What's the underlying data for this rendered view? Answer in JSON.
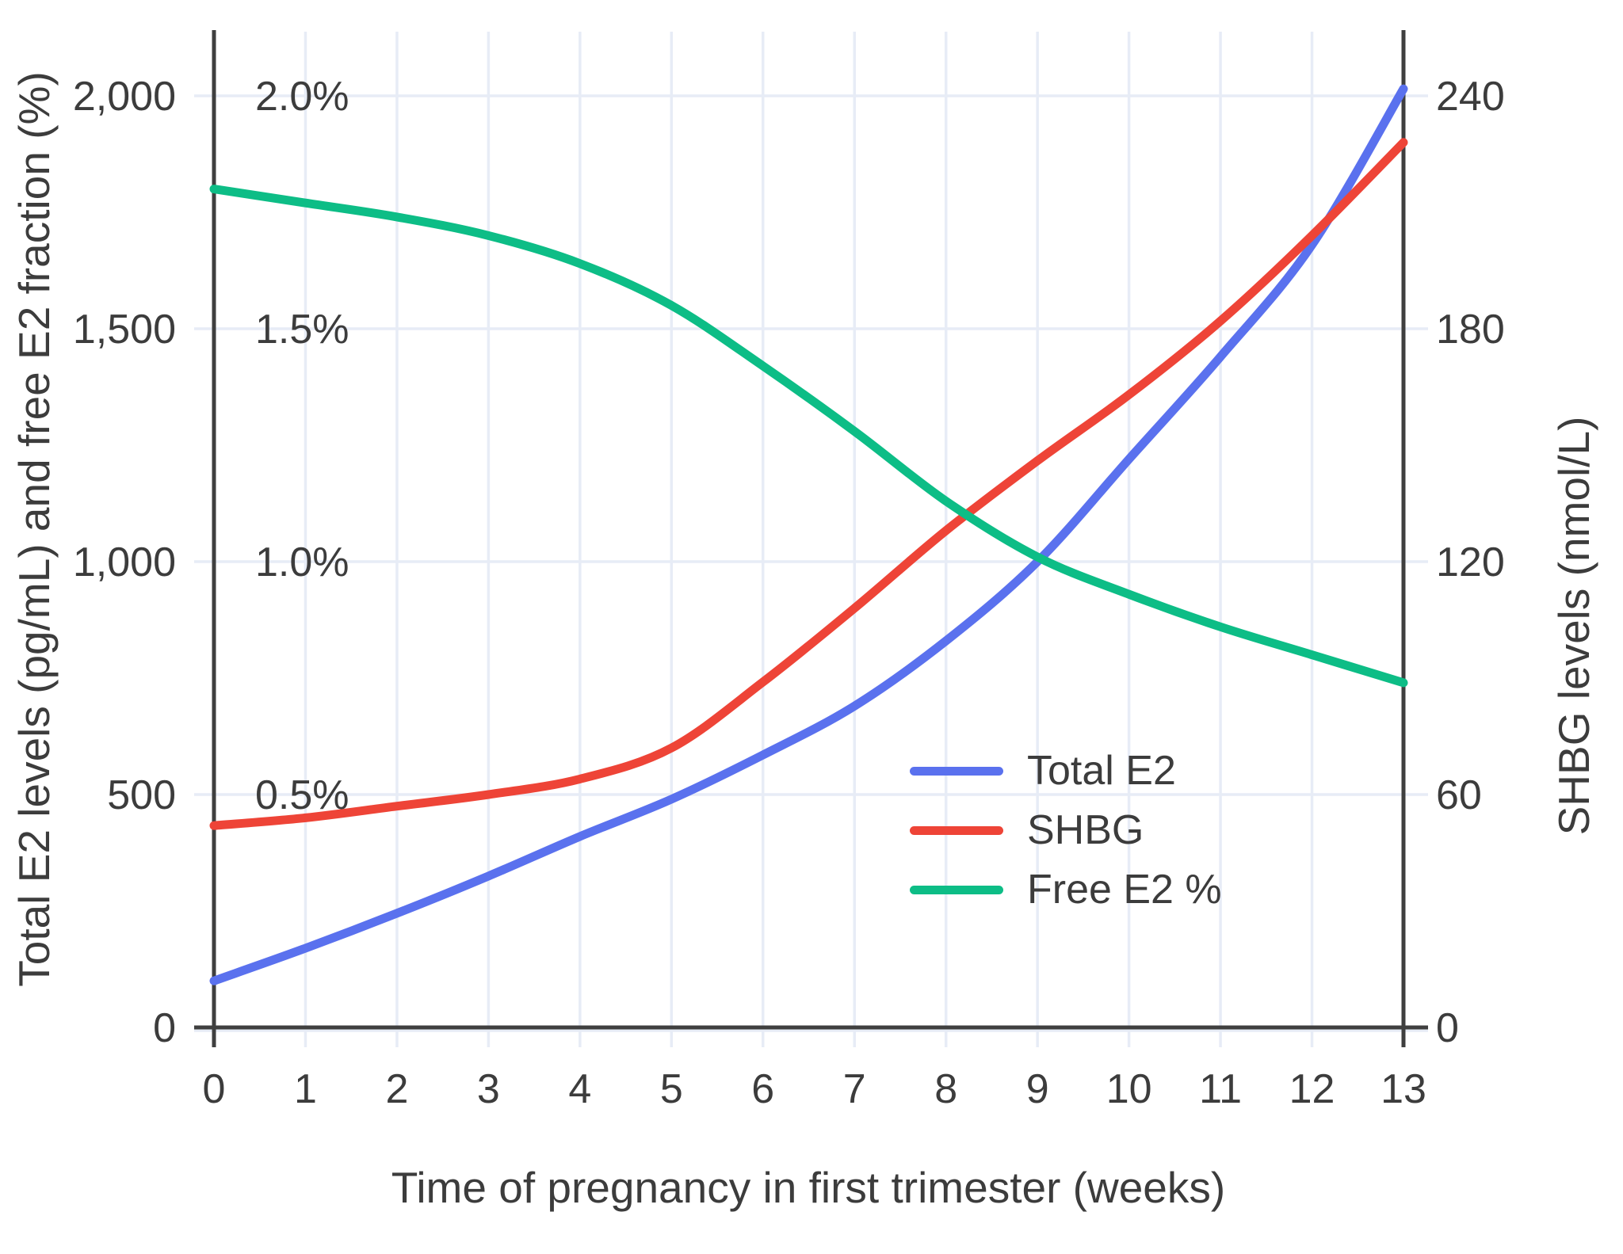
{
  "chart_data": {
    "type": "line",
    "title": "",
    "xlabel": "Time of pregnancy in first trimester (weeks)",
    "ylabel_left": "Total E2 levels (pg/mL) and free E2 fraction (%)",
    "ylabel_right": "SHBG levels (nmol/L)",
    "x": [
      0,
      1,
      2,
      3,
      4,
      5,
      6,
      7,
      8,
      9,
      10,
      11,
      12,
      13
    ],
    "x_tick_labels": [
      "0",
      "1",
      "2",
      "3",
      "4",
      "5",
      "6",
      "7",
      "8",
      "9",
      "10",
      "11",
      "12",
      "13"
    ],
    "x_range": [
      0,
      13
    ],
    "left_axis": {
      "range": [
        0,
        2000
      ],
      "unit": "pg/mL",
      "ticks": [
        {
          "label": "0",
          "value": 0
        },
        {
          "label": "500",
          "value": 500
        },
        {
          "label": "1,000",
          "value": 1000
        },
        {
          "label": "1,500",
          "value": 1500
        },
        {
          "label": "2,000",
          "value": 2000
        }
      ]
    },
    "percent_axis": {
      "range": [
        0,
        2
      ],
      "unit": "%",
      "ticks": [
        {
          "label": "0.5%",
          "value": 0.5
        },
        {
          "label": "1.0%",
          "value": 1.0
        },
        {
          "label": "1.5%",
          "value": 1.5
        },
        {
          "label": "2.0%",
          "value": 2.0
        }
      ]
    },
    "right_axis": {
      "range": [
        0,
        240
      ],
      "unit": "nmol/L",
      "ticks": [
        {
          "label": "0",
          "value": 0
        },
        {
          "label": "60",
          "value": 60
        },
        {
          "label": "120",
          "value": 120
        },
        {
          "label": "180",
          "value": 180
        },
        {
          "label": "240",
          "value": 240
        }
      ]
    },
    "grid": true,
    "legend_position": "center-right",
    "series": [
      {
        "name": "Total E2",
        "axis": "left",
        "unit": "pg/mL",
        "color": "#5A71EE",
        "values": [
          100,
          170,
          245,
          325,
          410,
          490,
          585,
          690,
          830,
          1000,
          1220,
          1440,
          1680,
          2015
        ]
      },
      {
        "name": "SHBG",
        "axis": "right",
        "unit": "nmol/L",
        "color": "#EE4437",
        "values": [
          52,
          54,
          57,
          60,
          64,
          72,
          89,
          108,
          128,
          146,
          163,
          182,
          204,
          228
        ]
      },
      {
        "name": "Free E2 %",
        "axis": "percent",
        "unit": "%",
        "color": "#0DBD86",
        "values": [
          1.8,
          1.77,
          1.74,
          1.7,
          1.64,
          1.55,
          1.42,
          1.28,
          1.13,
          1.01,
          0.93,
          0.86,
          0.8,
          0.74
        ]
      }
    ],
    "colors": {
      "grid": "#E7ECF6",
      "axis": "#3F3F3F",
      "text": "#3C3C3C",
      "background": "#FFFFFF"
    }
  }
}
